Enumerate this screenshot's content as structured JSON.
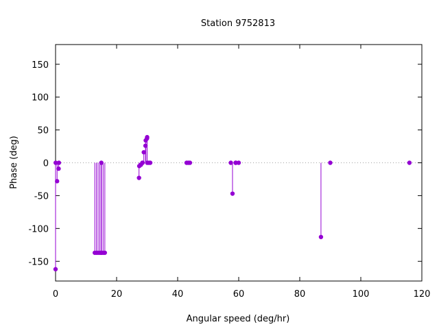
{
  "chart_data": {
    "type": "scatter",
    "style": "impulses-with-points",
    "title": "Station 9752813",
    "xlabel": "Angular speed (deg/hr)",
    "ylabel": "Phase (deg)",
    "xlim": [
      0,
      120
    ],
    "ylim": [
      -180,
      180
    ],
    "xticks": [
      0,
      20,
      40,
      60,
      80,
      100,
      120
    ],
    "yticks": [
      -150,
      -100,
      -50,
      0,
      50,
      100,
      150
    ],
    "zero_line": true,
    "grid": false,
    "series_color": "#9400d3",
    "points": [
      {
        "x": 0.0,
        "y": -162
      },
      {
        "x": 0.04,
        "y": 0
      },
      {
        "x": 0.5,
        "y": -28
      },
      {
        "x": 1.0,
        "y": -9
      },
      {
        "x": 1.1,
        "y": 0
      },
      {
        "x": 12.85,
        "y": -137
      },
      {
        "x": 13.4,
        "y": -137
      },
      {
        "x": 13.94,
        "y": -137
      },
      {
        "x": 14.5,
        "y": -137
      },
      {
        "x": 14.96,
        "y": -137
      },
      {
        "x": 15.0,
        "y": 0
      },
      {
        "x": 15.04,
        "y": -137
      },
      {
        "x": 15.59,
        "y": -137
      },
      {
        "x": 16.14,
        "y": -137
      },
      {
        "x": 27.34,
        "y": -23
      },
      {
        "x": 27.42,
        "y": -5
      },
      {
        "x": 27.97,
        "y": -3
      },
      {
        "x": 28.44,
        "y": 0
      },
      {
        "x": 28.51,
        "y": 0
      },
      {
        "x": 28.91,
        "y": 16
      },
      {
        "x": 29.46,
        "y": 26
      },
      {
        "x": 29.53,
        "y": 34
      },
      {
        "x": 29.96,
        "y": 37
      },
      {
        "x": 30.0,
        "y": 39
      },
      {
        "x": 30.04,
        "y": 0
      },
      {
        "x": 30.55,
        "y": 0
      },
      {
        "x": 31.02,
        "y": 0
      },
      {
        "x": 42.93,
        "y": 0
      },
      {
        "x": 43.48,
        "y": 0
      },
      {
        "x": 44.03,
        "y": 0
      },
      {
        "x": 57.42,
        "y": 0
      },
      {
        "x": 57.97,
        "y": -47
      },
      {
        "x": 58.98,
        "y": 0
      },
      {
        "x": 59.07,
        "y": 0
      },
      {
        "x": 60.0,
        "y": 0
      },
      {
        "x": 86.95,
        "y": -113
      },
      {
        "x": 90.0,
        "y": 0
      },
      {
        "x": 115.94,
        "y": 0
      }
    ]
  }
}
